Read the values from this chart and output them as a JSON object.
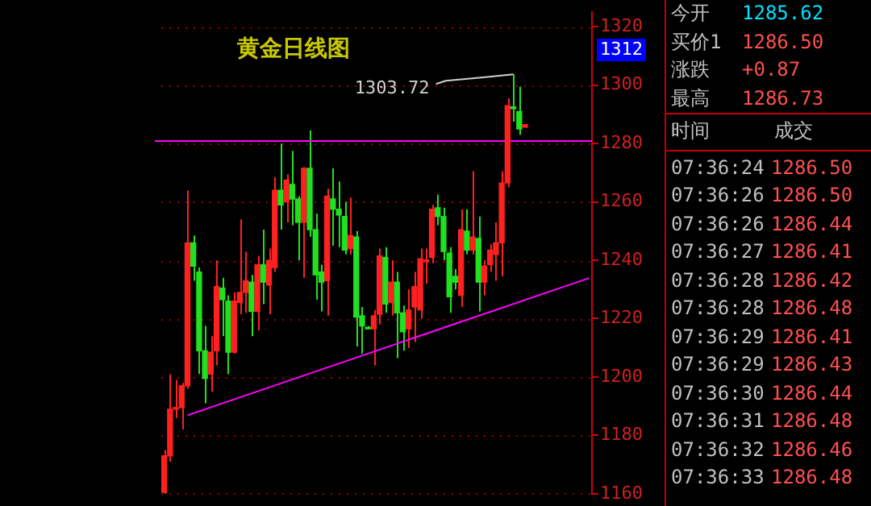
{
  "chart_data": {
    "type": "candlestick",
    "title": "黄金日线图",
    "categories": [
      null,
      null,
      null,
      null,
      null,
      null,
      null,
      null,
      null,
      null,
      null,
      null,
      null,
      null,
      null,
      null,
      null,
      null,
      null,
      null,
      null,
      null,
      null,
      null,
      null,
      null,
      null,
      null,
      null,
      null,
      null,
      null,
      null,
      null,
      null,
      null,
      null,
      null,
      null,
      null,
      null,
      null,
      null,
      null,
      null,
      null,
      null,
      null,
      null,
      null,
      null,
      null,
      null,
      null,
      null,
      null,
      null,
      null,
      null,
      null,
      null,
      null,
      null,
      null,
      null,
      null,
      null,
      null,
      null,
      null,
      null,
      null,
      null,
      null
    ],
    "ohlc": [
      [
        1160.5,
        1175,
        1160,
        1173
      ],
      [
        1173,
        1201,
        1171,
        1189
      ],
      [
        1189,
        1199,
        1186,
        1189.5
      ],
      [
        1189.5,
        1198,
        1182,
        1197
      ],
      [
        1197,
        1264,
        1196,
        1246
      ],
      [
        1246,
        1248.5,
        1233,
        1238
      ],
      [
        1236,
        1237.5,
        1201,
        1209
      ],
      [
        1209,
        1217.5,
        1191,
        1199.5
      ],
      [
        1201,
        1214,
        1195,
        1208.5
      ],
      [
        1209,
        1240,
        1204,
        1231
      ],
      [
        1230.5,
        1234,
        1214,
        1226.5
      ],
      [
        1226,
        1228,
        1201,
        1208.5
      ],
      [
        1208.5,
        1229,
        1208,
        1226
      ],
      [
        1225.5,
        1254,
        1221.5,
        1229
      ],
      [
        1229,
        1243,
        1222,
        1233
      ],
      [
        1232.5,
        1235,
        1214,
        1222.5
      ],
      [
        1222.5,
        1241.5,
        1216,
        1238.5
      ],
      [
        1238.5,
        1250.5,
        1225,
        1232.5
      ],
      [
        1231.5,
        1244,
        1221.5,
        1240
      ],
      [
        1237.5,
        1268.5,
        1236,
        1264
      ],
      [
        1264,
        1280,
        1250.5,
        1259
      ],
      [
        1260,
        1269.5,
        1253,
        1267.5
      ],
      [
        1266,
        1277.5,
        1252,
        1261
      ],
      [
        1261,
        1262,
        1240,
        1253
      ],
      [
        1253,
        1272,
        1234,
        1271.5
      ],
      [
        1271.5,
        1284.5,
        1248,
        1250.5
      ],
      [
        1250.5,
        1256,
        1226.5,
        1235
      ],
      [
        1236,
        1238.5,
        1222.5,
        1232.5
      ],
      [
        1233,
        1264.5,
        1221,
        1262
      ],
      [
        1261,
        1271.5,
        1245,
        1257.5
      ],
      [
        1257.5,
        1267,
        1244.5,
        1255.5
      ],
      [
        1255,
        1260,
        1242,
        1243.5
      ],
      [
        1244,
        1261.5,
        1242,
        1248.5
      ],
      [
        1248,
        1250,
        1210.5,
        1220.5
      ],
      [
        1221,
        1224,
        1208,
        1217.5
      ],
      [
        1217,
        1217.5,
        1216.5,
        1216.5
      ],
      [
        1216.5,
        1223,
        1204,
        1221
      ],
      [
        1221.5,
        1244,
        1218,
        1241.5
      ],
      [
        1241,
        1244.5,
        1222,
        1225
      ],
      [
        1225.5,
        1240,
        1221,
        1232.5
      ],
      [
        1232.5,
        1236,
        1206.5,
        1222
      ],
      [
        1222,
        1224.5,
        1209,
        1215.5
      ],
      [
        1216.5,
        1230,
        1210,
        1223
      ],
      [
        1224,
        1236,
        1212,
        1231
      ],
      [
        1223,
        1244,
        1220,
        1240.5
      ],
      [
        1239.5,
        1244,
        1232,
        1240
      ],
      [
        1241,
        1259,
        1239,
        1257.5
      ],
      [
        1258,
        1262.5,
        1252,
        1255
      ],
      [
        1255,
        1258,
        1240,
        1243
      ],
      [
        1242.5,
        1244.5,
        1222,
        1227.5
      ],
      [
        1234.5,
        1237,
        1230,
        1232.5
      ],
      [
        1228,
        1257.5,
        1224,
        1250.5
      ],
      [
        1250,
        1257.5,
        1242,
        1243.5
      ],
      [
        1243.5,
        1270.5,
        1242,
        1248
      ],
      [
        1247.5,
        1255,
        1222.5,
        1232.5
      ],
      [
        1232.5,
        1240,
        1228,
        1238
      ],
      [
        1238.5,
        1245.5,
        1236,
        1243.5
      ],
      [
        1242,
        1253,
        1233,
        1246
      ],
      [
        1246,
        1270.5,
        1234.5,
        1266.5
      ],
      [
        1266.5,
        1295.5,
        1265,
        1293
      ],
      [
        1292.5,
        1303.72,
        1287.5,
        1292
      ],
      [
        1291,
        1299.5,
        1283,
        1285
      ],
      [
        1285.62,
        1286.73,
        1285.5,
        1286.5
      ],
      null,
      null,
      null,
      null,
      null,
      null,
      null,
      null,
      null,
      null,
      null
    ],
    "series": [
      {
        "type": "line",
        "color": "#ff00ff",
        "values": [
          null,
          null,
          null,
          null,
          1186.9,
          null,
          null,
          null,
          null,
          null,
          null,
          null,
          null,
          null,
          null,
          null,
          null,
          null,
          null,
          null,
          null,
          null,
          null,
          null,
          null,
          null,
          null,
          null,
          null,
          null,
          null,
          null,
          null,
          null,
          null,
          null,
          null,
          null,
          null,
          null,
          null,
          null,
          null,
          null,
          null,
          null,
          null,
          null,
          null,
          null,
          null,
          null,
          null,
          null,
          null,
          null,
          null,
          null,
          null,
          null,
          null,
          null,
          null,
          null,
          null,
          null,
          null,
          null,
          null,
          null,
          null,
          null,
          null,
          1233.9
        ]
      }
    ],
    "ref_lines": [
      {
        "axis": "y",
        "value": 1281,
        "color": "#ff00ff"
      }
    ],
    "ylim": [
      1160,
      1325
    ],
    "yticks": [
      1160,
      1180,
      1200,
      1220,
      1240,
      1260,
      1280,
      1300,
      1320
    ],
    "grid": "y",
    "tick_labels": "y",
    "annotations": [
      "1303.72",
      "1312",
      "今开 1285.62",
      "买价1 1286.50",
      "涨跌 +0.87",
      "最高 1286.73",
      "时间 成交",
      "07:36:24 1286.50",
      "07:36:26 1286.50",
      "07:36:26 1286.44",
      "07:36:27 1286.41",
      "07:36:28 1286.42",
      "07:36:28 1286.48",
      "07:36:29 1286.41",
      "07:36:29 1286.43",
      "07:36:30 1286.44",
      "07:36:31 1286.48",
      "07:36:32 1286.46",
      "07:36:33 1286.48"
    ]
  }
}
